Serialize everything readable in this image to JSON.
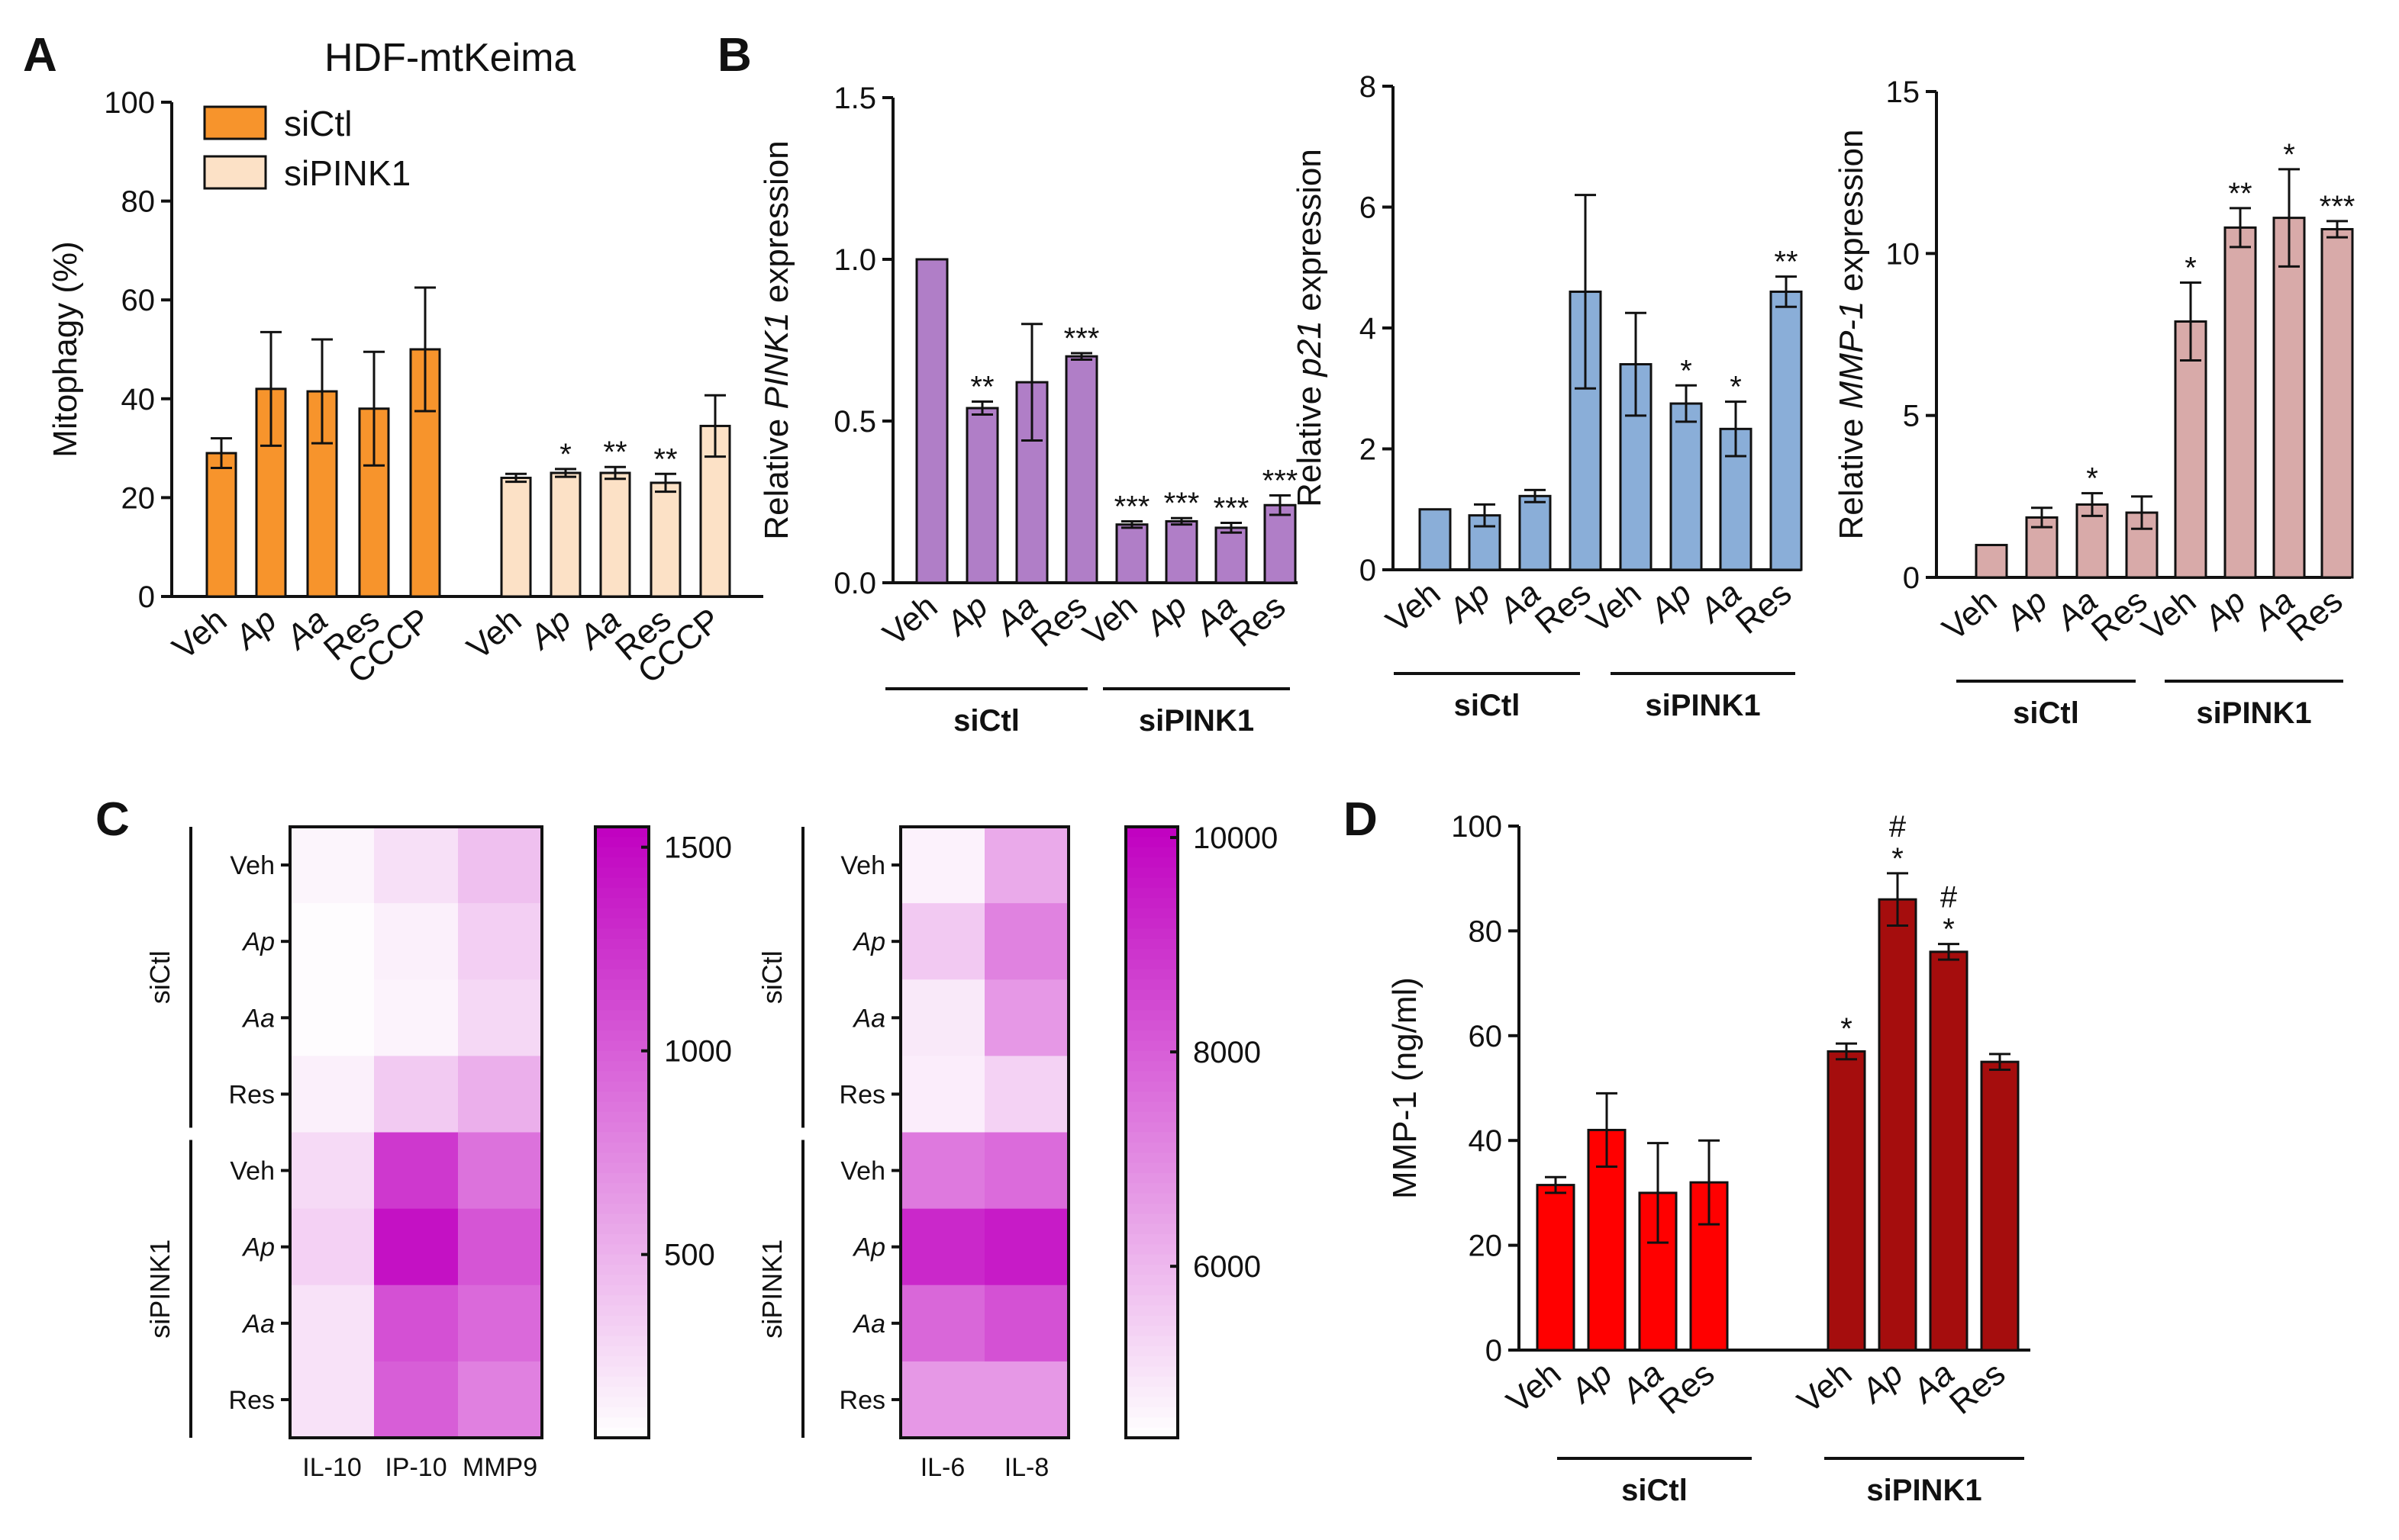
{
  "panels": {
    "A": "A",
    "B": "B",
    "C": "C",
    "D": "D"
  },
  "panelA_title": "HDF-mtKeima",
  "groups": [
    "siCtl",
    "siPINK1"
  ],
  "chart_data": [
    {
      "id": "A",
      "type": "bar",
      "title": "HDF-mtKeima",
      "ylabel": "Mitophagy (%)",
      "ylim": [
        0,
        100
      ],
      "yticks": [
        0,
        20,
        40,
        60,
        80,
        100
      ],
      "categories": [
        "Veh",
        "Ap",
        "Aa",
        "Res",
        "CCCP"
      ],
      "legend": [
        "siCtl",
        "siPINK1"
      ],
      "series": [
        {
          "name": "siCtl",
          "color": "#f7942c",
          "values": [
            29,
            42,
            41.5,
            38,
            50
          ],
          "errors": [
            3,
            11.5,
            10.5,
            11.5,
            12.5
          ],
          "sig": [
            "",
            "",
            "",
            "",
            ""
          ]
        },
        {
          "name": "siPINK1",
          "color": "#fce1c6",
          "values": [
            24,
            25,
            25,
            23,
            34.5
          ],
          "errors": [
            0.8,
            0.8,
            1.2,
            1.8,
            6.2
          ],
          "sig": [
            "",
            "*",
            "**",
            "**",
            ""
          ]
        }
      ]
    },
    {
      "id": "B1",
      "type": "bar",
      "ylabel": "Relative PINK1 expression",
      "ylabel_parts": [
        "Relative ",
        "PINK1",
        " expression"
      ],
      "ylim": [
        0,
        1.5
      ],
      "yticks": [
        "0.0",
        "0.5",
        "1.0",
        "1.5"
      ],
      "categories": [
        "Veh",
        "Ap",
        "Aa",
        "Res",
        "Veh",
        "Ap",
        "Aa",
        "Res"
      ],
      "groups": [
        "siCtl",
        "siPINK1"
      ],
      "color": "#b07ec7",
      "values": [
        1.0,
        0.54,
        0.62,
        0.7,
        0.18,
        0.19,
        0.17,
        0.24
      ],
      "errors": [
        0,
        0.02,
        0.18,
        0.01,
        0.01,
        0.01,
        0.015,
        0.03
      ],
      "sig": [
        "",
        "**",
        "",
        "***",
        "***",
        "***",
        "***",
        "***"
      ]
    },
    {
      "id": "B2",
      "type": "bar",
      "ylabel": "Relative p21 expression",
      "ylabel_parts": [
        "Relative ",
        "p21",
        " expression"
      ],
      "ylim": [
        0,
        8
      ],
      "yticks": [
        "0",
        "2",
        "4",
        "6",
        "8"
      ],
      "categories": [
        "Veh",
        "Ap",
        "Aa",
        "Res",
        "Veh",
        "Ap",
        "Aa",
        "Res"
      ],
      "groups": [
        "siCtl",
        "siPINK1"
      ],
      "color": "#8aaed8",
      "values": [
        1.0,
        0.9,
        1.22,
        4.6,
        3.4,
        2.75,
        2.33,
        4.6
      ],
      "errors": [
        0,
        0.18,
        0.1,
        1.6,
        0.85,
        0.3,
        0.45,
        0.25
      ],
      "sig": [
        "",
        "",
        "",
        "",
        "",
        "*",
        "*",
        "**"
      ]
    },
    {
      "id": "B3",
      "type": "bar",
      "ylabel": "Relative MMP-1 expression",
      "ylabel_parts": [
        "Relative ",
        "MMP-1",
        " expression"
      ],
      "ylim": [
        0,
        15
      ],
      "yticks": [
        "0",
        "5",
        "10",
        "15"
      ],
      "categories": [
        "Veh",
        "Ap",
        "Aa",
        "Res",
        "Veh",
        "Ap",
        "Aa",
        "Res"
      ],
      "groups": [
        "siCtl",
        "siPINK1"
      ],
      "color": "#d8aaa9",
      "values": [
        1.0,
        1.85,
        2.25,
        2.0,
        7.9,
        10.8,
        11.1,
        10.75
      ],
      "errors": [
        0,
        0.3,
        0.35,
        0.5,
        1.2,
        0.6,
        1.5,
        0.25
      ],
      "sig": [
        "",
        "",
        "*",
        "",
        "*",
        "**",
        "*",
        "***"
      ]
    },
    {
      "id": "C1",
      "type": "heatmap",
      "rows": [
        "Veh",
        "Ap",
        "Aa",
        "Res",
        "Veh",
        "Ap",
        "Aa",
        "Res"
      ],
      "row_groups": [
        "siCtl",
        "siPINK1"
      ],
      "columns": [
        "IL-10",
        "IP-10",
        "MMP9"
      ],
      "values": [
        [
          110,
          230,
          420
        ],
        [
          70,
          140,
          330
        ],
        [
          70,
          120,
          280
        ],
        [
          140,
          360,
          520
        ],
        [
          270,
          1220,
          880
        ],
        [
          320,
          1450,
          1050
        ],
        [
          220,
          1080,
          930
        ],
        [
          220,
          1000,
          800
        ]
      ],
      "scale_min": 50,
      "scale_max": 1550,
      "colorbar_ticks": [
        "500",
        "1000",
        "1500"
      ]
    },
    {
      "id": "C2",
      "type": "heatmap",
      "rows": [
        "Veh",
        "Ap",
        "Aa",
        "Res",
        "Veh",
        "Ap",
        "Aa",
        "Res"
      ],
      "row_groups": [
        "siCtl",
        "siPINK1"
      ],
      "columns": [
        "IL-6",
        "IL-8"
      ],
      "values": [
        [
          4700,
          6300
        ],
        [
          5600,
          7200
        ],
        [
          4900,
          6700
        ],
        [
          4800,
          5400
        ],
        [
          7400,
          7700
        ],
        [
          9200,
          9500
        ],
        [
          7800,
          8300
        ],
        [
          6700,
          6700
        ]
      ],
      "scale_min": 4400,
      "scale_max": 10100,
      "colorbar_ticks": [
        "6000",
        "8000",
        "10000"
      ]
    },
    {
      "id": "D",
      "type": "bar",
      "ylabel": "MMP-1 (ng/ml)",
      "ylim": [
        0,
        100
      ],
      "yticks": [
        "0",
        "20",
        "40",
        "60",
        "80",
        "100"
      ],
      "categories": [
        "Veh",
        "Ap",
        "Aa",
        "Res",
        "Veh",
        "Ap",
        "Aa",
        "Res"
      ],
      "groups": [
        "siCtl",
        "siPINK1"
      ],
      "colors": [
        "#ff0000",
        "#ff0000",
        "#ff0000",
        "#ff0000",
        "#a50d0d",
        "#a50d0d",
        "#a50d0d",
        "#a50d0d"
      ],
      "values": [
        31.5,
        42,
        30,
        32,
        57,
        86,
        76,
        55
      ],
      "errors": [
        1.5,
        7,
        9.5,
        8,
        1.5,
        5,
        1.5,
        1.5
      ],
      "sig": [
        "",
        "",
        "",
        "",
        "*",
        "*",
        "*",
        ""
      ],
      "sig2": [
        "",
        "",
        "",
        "",
        "",
        "#",
        "#",
        ""
      ]
    }
  ]
}
